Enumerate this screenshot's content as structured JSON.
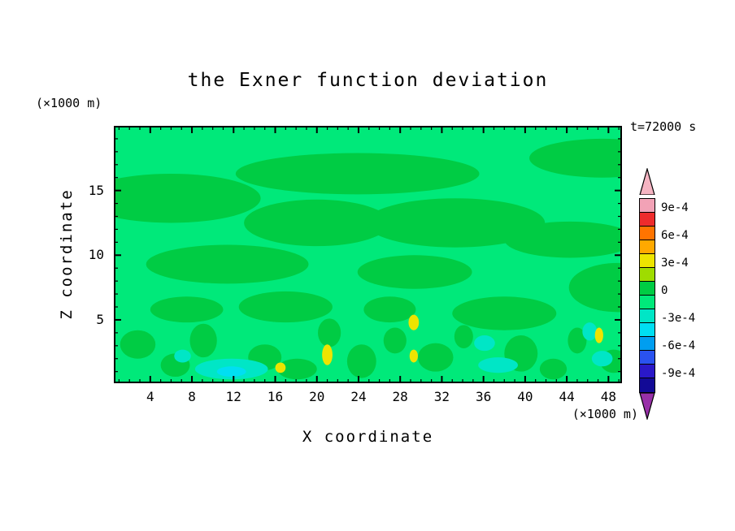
{
  "chart_data": {
    "type": "contour",
    "title": "the Exner function deviation",
    "time_label": "t=72000 s",
    "contour_interval": 0.00015,
    "x_axis": {
      "label": "X coordinate",
      "unit": "(×1000 m)",
      "range": [
        0.5,
        49.3
      ],
      "ticks": [
        4,
        8,
        12,
        16,
        20,
        24,
        28,
        32,
        36,
        40,
        44,
        48
      ],
      "minor_tick_step": 1
    },
    "y_axis": {
      "label": "Z coordinate",
      "unit": "(×1000 m)",
      "range": [
        0.1,
        20.0
      ],
      "ticks": [
        5,
        10,
        15
      ],
      "minor_tick_step": 1
    },
    "colorbar": {
      "order": "top-to-bottom",
      "tick_labels": [
        "9e-4",
        "6e-4",
        "3e-4",
        "0",
        "-3e-4",
        "-6e-4",
        "-9e-4"
      ],
      "above_color": "#F5B4C2",
      "below_color": "#9830A8",
      "segments": [
        {
          "from": 0.0009,
          "to": 0.00105,
          "color": "#F2A2B6"
        },
        {
          "from": 0.00075,
          "to": 0.0009,
          "color": "#EE2C2C"
        },
        {
          "from": 0.0006,
          "to": 0.00075,
          "color": "#FF7400"
        },
        {
          "from": 0.00045,
          "to": 0.0006,
          "color": "#FFA900"
        },
        {
          "from": 0.0003,
          "to": 0.00045,
          "color": "#EDE400"
        },
        {
          "from": 0.00015,
          "to": 0.0003,
          "color": "#9FDC00"
        },
        {
          "from": 0.0,
          "to": 0.00015,
          "color": "#00CC44"
        },
        {
          "from": -0.00015,
          "to": 0.0,
          "color": "#00E97A"
        },
        {
          "from": -0.0003,
          "to": -0.00015,
          "color": "#00E6C6"
        },
        {
          "from": -0.00045,
          "to": -0.0003,
          "color": "#00DFF2"
        },
        {
          "from": -0.0006,
          "to": -0.00045,
          "color": "#009EF0"
        },
        {
          "from": -0.00075,
          "to": -0.0006,
          "color": "#2A52F0"
        },
        {
          "from": -0.0009,
          "to": -0.00075,
          "color": "#2A18C8"
        },
        {
          "from": -0.00105,
          "to": -0.0009,
          "color": "#120A96"
        }
      ]
    },
    "field": {
      "background": {
        "level_range": [
          -0.00015,
          0.0
        ],
        "color": "#00E97A"
      },
      "regions": [
        {
          "name": "green",
          "level_range": [
            0.0,
            0.00015
          ],
          "color": "#00CC44",
          "blobs": [
            [
              6.0,
              14.4,
              8.6,
              1.9
            ],
            [
              23.9,
              16.3,
              11.7,
              1.6
            ],
            [
              20.0,
              12.5,
              7.0,
              1.8
            ],
            [
              33.3,
              12.5,
              8.6,
              1.9
            ],
            [
              47.4,
              17.5,
              7.0,
              1.5
            ],
            [
              44.3,
              11.2,
              6.3,
              1.4
            ],
            [
              11.4,
              9.3,
              7.8,
              1.5
            ],
            [
              29.4,
              8.7,
              5.5,
              1.3
            ],
            [
              48.9,
              7.5,
              4.7,
              1.9
            ],
            [
              17.0,
              6.0,
              4.5,
              1.2
            ],
            [
              38.0,
              5.5,
              5.0,
              1.3
            ],
            [
              7.5,
              5.8,
              3.5,
              1.0
            ],
            [
              27.0,
              5.8,
              2.5,
              1.0
            ],
            [
              2.8,
              3.1,
              1.7,
              1.1
            ],
            [
              6.4,
              1.5,
              1.4,
              0.9
            ],
            [
              9.1,
              3.4,
              1.3,
              1.3
            ],
            [
              15.0,
              2.1,
              1.6,
              1.0
            ],
            [
              18.1,
              1.2,
              1.9,
              0.8
            ],
            [
              21.2,
              4.0,
              1.1,
              1.1
            ],
            [
              24.3,
              1.8,
              1.4,
              1.3
            ],
            [
              27.5,
              3.4,
              1.1,
              1.0
            ],
            [
              31.4,
              2.1,
              1.7,
              1.1
            ],
            [
              34.1,
              3.7,
              0.9,
              0.9
            ],
            [
              39.6,
              2.4,
              1.6,
              1.4
            ],
            [
              42.7,
              1.2,
              1.3,
              0.8
            ],
            [
              45.0,
              3.4,
              0.9,
              1.0
            ],
            [
              48.5,
              1.8,
              1.3,
              0.9
            ]
          ]
        },
        {
          "name": "aquamarine",
          "level_range": [
            -0.0003,
            -0.00015
          ],
          "color": "#00E6C6",
          "blobs": [
            [
              11.8,
              1.2,
              3.5,
              0.8
            ],
            [
              7.1,
              2.2,
              0.8,
              0.5
            ],
            [
              36.1,
              3.2,
              1.0,
              0.6
            ],
            [
              37.4,
              1.5,
              1.9,
              0.6
            ],
            [
              46.2,
              4.1,
              0.7,
              0.7
            ],
            [
              47.4,
              2.0,
              1.0,
              0.6
            ]
          ]
        },
        {
          "name": "cyan",
          "level_range": [
            -0.00045,
            -0.0003
          ],
          "color": "#00DFF2",
          "blobs": [
            [
              11.8,
              1.0,
              1.4,
              0.4
            ]
          ]
        },
        {
          "name": "yellow",
          "level_range": [
            0.0003,
            0.00045
          ],
          "color": "#EDE400",
          "blobs": [
            [
              21.0,
              2.3,
              0.5,
              0.8
            ],
            [
              29.3,
              4.8,
              0.5,
              0.6
            ],
            [
              29.3,
              2.2,
              0.4,
              0.5
            ],
            [
              47.1,
              3.8,
              0.4,
              0.6
            ],
            [
              16.5,
              1.3,
              0.5,
              0.4
            ]
          ]
        }
      ]
    }
  }
}
